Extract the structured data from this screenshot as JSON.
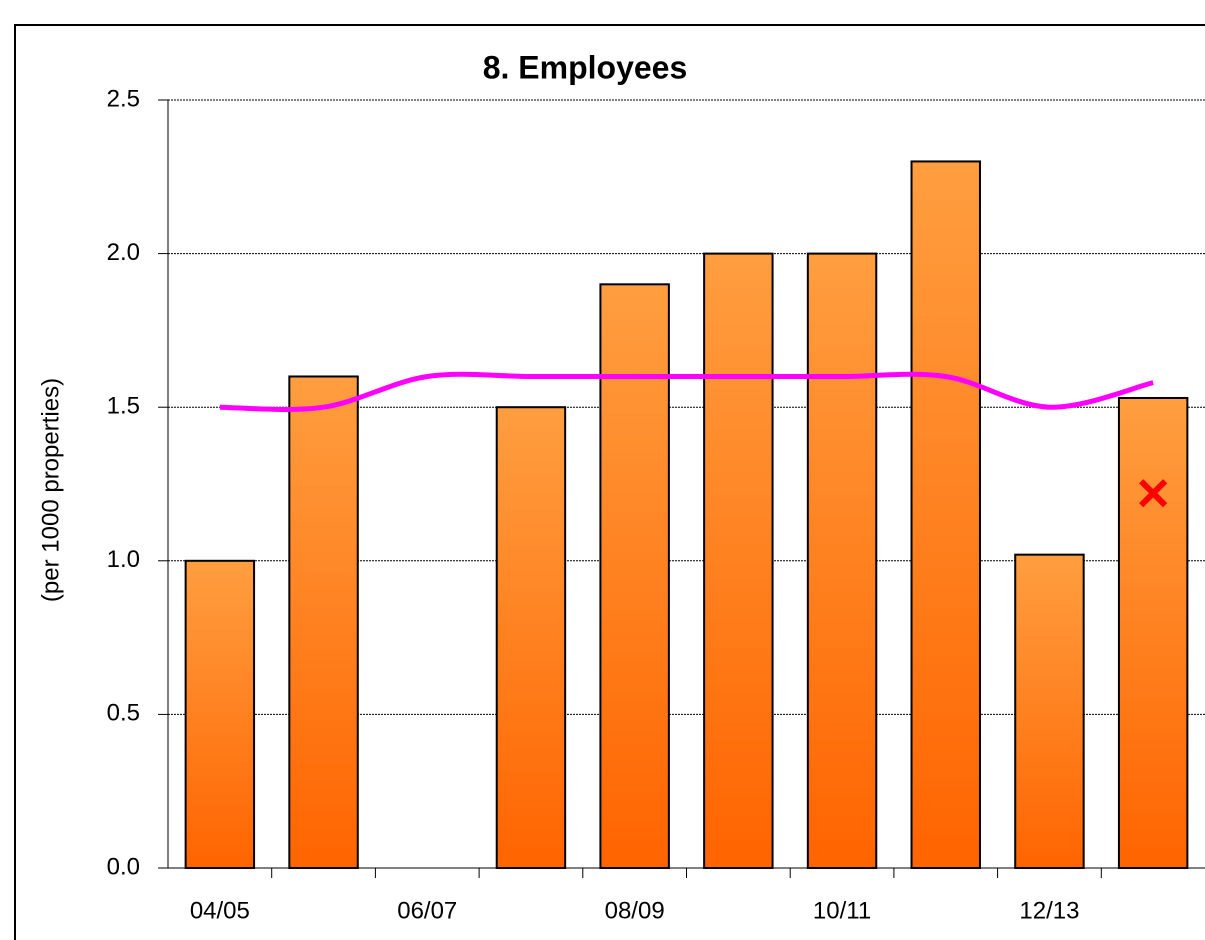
{
  "chart_data": {
    "type": "bar",
    "title": "8. Employees",
    "y_label": "(per 1000 properties)",
    "categories": [
      "04/05",
      null,
      "06/07",
      null,
      "08/09",
      null,
      "10/11",
      null,
      "12/13",
      null
    ],
    "series": [
      {
        "type": "bar",
        "color": "#ff7a1a",
        "values": [
          1.0,
          1.6,
          null,
          1.5,
          1.9,
          2.0,
          2.0,
          2.3,
          1.02,
          1.53
        ]
      },
      {
        "type": "line",
        "color": "#ff00ff",
        "values": [
          1.5,
          1.5,
          1.6,
          1.6,
          1.6,
          1.6,
          1.6,
          1.6,
          1.5,
          1.58
        ]
      },
      {
        "type": "marker",
        "color": "#ff0000",
        "values": [
          null,
          null,
          null,
          null,
          null,
          null,
          null,
          null,
          null,
          1.22
        ]
      }
    ],
    "ylim": [
      0,
      2.5
    ],
    "yticks": [
      {
        "value": 0,
        "label": "0.0"
      },
      0.5,
      {
        "value": 1,
        "label": "1.0"
      },
      1.5,
      {
        "value": 2,
        "label": "2.0"
      },
      2.5
    ],
    "grid": true
  }
}
